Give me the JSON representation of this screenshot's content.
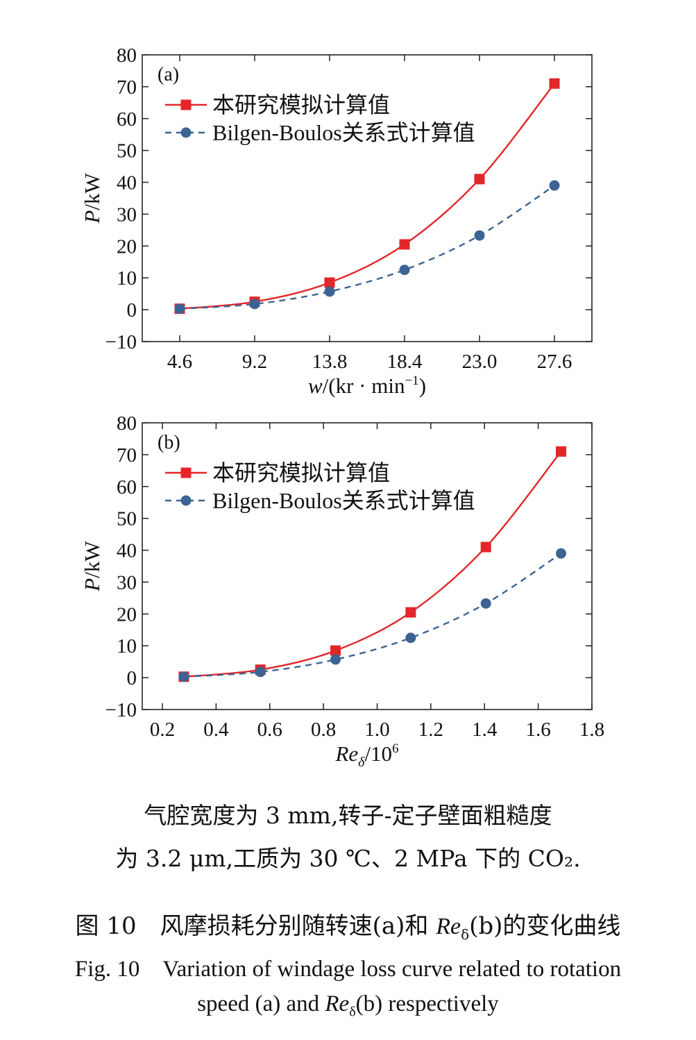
{
  "chart_data": [
    {
      "type": "line",
      "panel_label": "(a)",
      "x": [
        4.6,
        9.2,
        13.8,
        18.4,
        23.0,
        27.6
      ],
      "x_tick_labels": [
        "4.6",
        "9.2",
        "13.8",
        "18.4",
        "23.0",
        "27.6"
      ],
      "xlim": [
        2.3,
        29.9
      ],
      "ylim": [
        -10,
        80
      ],
      "y_ticks": [
        -10,
        0,
        10,
        20,
        30,
        40,
        50,
        60,
        70,
        80
      ],
      "y_tick_labels": [
        "−10",
        "0",
        "10",
        "20",
        "30",
        "40",
        "50",
        "60",
        "70",
        "80"
      ],
      "xlabel": {
        "var": "w",
        "rest": "/(kr · min",
        "sup": "−1",
        "close": ")"
      },
      "ylabel": {
        "var": "P",
        "rest": "/kW"
      },
      "legend": "top-left",
      "series": [
        {
          "name": "本研究模拟计算值",
          "marker": "square",
          "line": "solid",
          "color": "#e2262a",
          "values": [
            0.3,
            2.5,
            8.5,
            20.5,
            41.0,
            71.0
          ]
        },
        {
          "name": "Bilgen-Boulos关系式计算值",
          "marker": "circle",
          "line": "dashed",
          "color": "#3c6493",
          "values": [
            0.3,
            1.8,
            5.7,
            12.5,
            23.3,
            39.0
          ]
        }
      ]
    },
    {
      "type": "line",
      "panel_label": "(b)",
      "x": [
        0.28,
        0.565,
        0.845,
        1.125,
        1.405,
        1.685
      ],
      "x_tick_labels": [
        "0.2",
        "0.4",
        "0.6",
        "0.8",
        "1.0",
        "1.2",
        "1.4",
        "1.6",
        "1.8"
      ],
      "x_ticks": [
        0.2,
        0.4,
        0.6,
        0.8,
        1.0,
        1.2,
        1.4,
        1.6,
        1.8
      ],
      "xlim": [
        0.125,
        1.8
      ],
      "ylim": [
        -10,
        80
      ],
      "y_ticks": [
        -10,
        0,
        10,
        20,
        30,
        40,
        50,
        60,
        70,
        80
      ],
      "y_tick_labels": [
        "−10",
        "0",
        "10",
        "20",
        "30",
        "40",
        "50",
        "60",
        "70",
        "80"
      ],
      "xlabel": {
        "var": "Re",
        "sub": "δ",
        "rest": "/10",
        "sup": "6"
      },
      "ylabel": {
        "var": "P",
        "rest": "/kW"
      },
      "legend": "top-left",
      "series": [
        {
          "name": "本研究模拟计算值",
          "marker": "square",
          "line": "solid",
          "color": "#e2262a",
          "values": [
            0.3,
            2.5,
            8.5,
            20.5,
            41.0,
            71.0
          ]
        },
        {
          "name": "Bilgen-Boulos关系式计算值",
          "marker": "circle",
          "line": "dashed",
          "color": "#3c6493",
          "values": [
            0.3,
            1.8,
            5.7,
            12.5,
            23.3,
            39.0
          ]
        }
      ]
    }
  ],
  "note_lines": [
    "气腔宽度为 3 mm,转子-定子壁面粗糙度",
    "为 3.2 μm,工质为 30 ℃、2 MPa 下的 CO₂."
  ],
  "figure_title_cn": {
    "pre": "图 10　风摩损耗分别随转速(a)和 ",
    "var": "Re",
    "sub": "δ",
    "post": "(b)的变化曲线"
  },
  "figure_title_en_line1": "Fig. 10　Variation of windage loss curve related to rotation",
  "figure_title_en_line2": {
    "pre": "speed (a) and ",
    "var": "Re",
    "sub": "δ",
    "post": "(b) respectively"
  }
}
